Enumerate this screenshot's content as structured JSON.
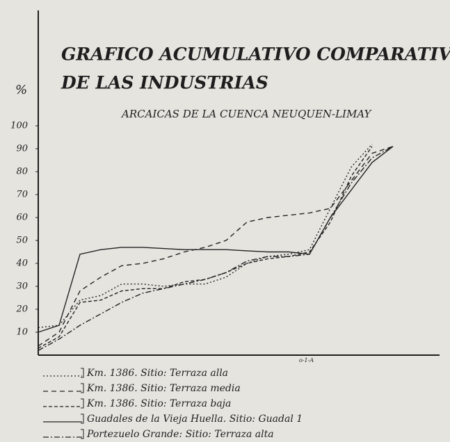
{
  "chart_data": {
    "type": "line",
    "title": "GRAFICO ACUMULATIVO COMPARATIVO",
    "subtitle_line": "DE LAS INDUSTRIAS",
    "subtitle": "ARCAICAS DE LA CUENCA NEUQUEN-LIMAY",
    "y_label": "%",
    "annotation": "o-1-A",
    "categories": [
      null,
      null,
      null,
      null,
      null,
      null,
      null,
      null,
      null,
      null,
      null,
      null,
      null,
      null,
      null,
      null,
      null,
      null,
      null
    ],
    "ylim": [
      0,
      150
    ],
    "yticks": [
      10,
      20,
      30,
      40,
      50,
      60,
      70,
      80,
      90,
      100
    ],
    "grid": false,
    "series": [
      {
        "name": "Km. 1386. Sitio: Terraza alla",
        "color": "#222222",
        "dash": "2,3",
        "values": [
          12,
          13,
          24,
          26,
          31,
          31,
          30,
          31,
          31,
          34,
          40,
          43,
          44,
          46,
          64,
          82,
          92,
          null,
          null
        ]
      },
      {
        "name": "Km. 1386. Sitio: Terraza media",
        "color": "#222222",
        "dash": "7,5",
        "values": [
          4,
          10,
          28,
          34,
          39,
          40,
          42,
          45,
          47,
          50,
          58,
          60,
          61,
          62,
          64,
          76,
          88,
          91,
          null
        ]
      },
      {
        "name": "Km. 1386. Sitio: Terraza baja",
        "color": "#222222",
        "dash": "5,3",
        "values": [
          3,
          8,
          23,
          24,
          28,
          29,
          29,
          32,
          33,
          36,
          40,
          42,
          43,
          45,
          58,
          78,
          91,
          null,
          null
        ]
      },
      {
        "name": "Guadales de la Vieja Huella. Sitio: Guadal 1",
        "color": "#222222",
        "dash": "none",
        "values": [
          10,
          13,
          44,
          46,
          47,
          47,
          46.5,
          46,
          46,
          46,
          45.5,
          45,
          45,
          44,
          60,
          72,
          84,
          91,
          null
        ]
      },
      {
        "name": "Portezuelo Grande: Sitio: Terraza alta",
        "color": "#222222",
        "dash": "8,3,2,3",
        "values": [
          2,
          7,
          13,
          18,
          23,
          27,
          29,
          31,
          33,
          36,
          41,
          43,
          43,
          44,
          60,
          75,
          86,
          91,
          null
        ]
      }
    ]
  }
}
